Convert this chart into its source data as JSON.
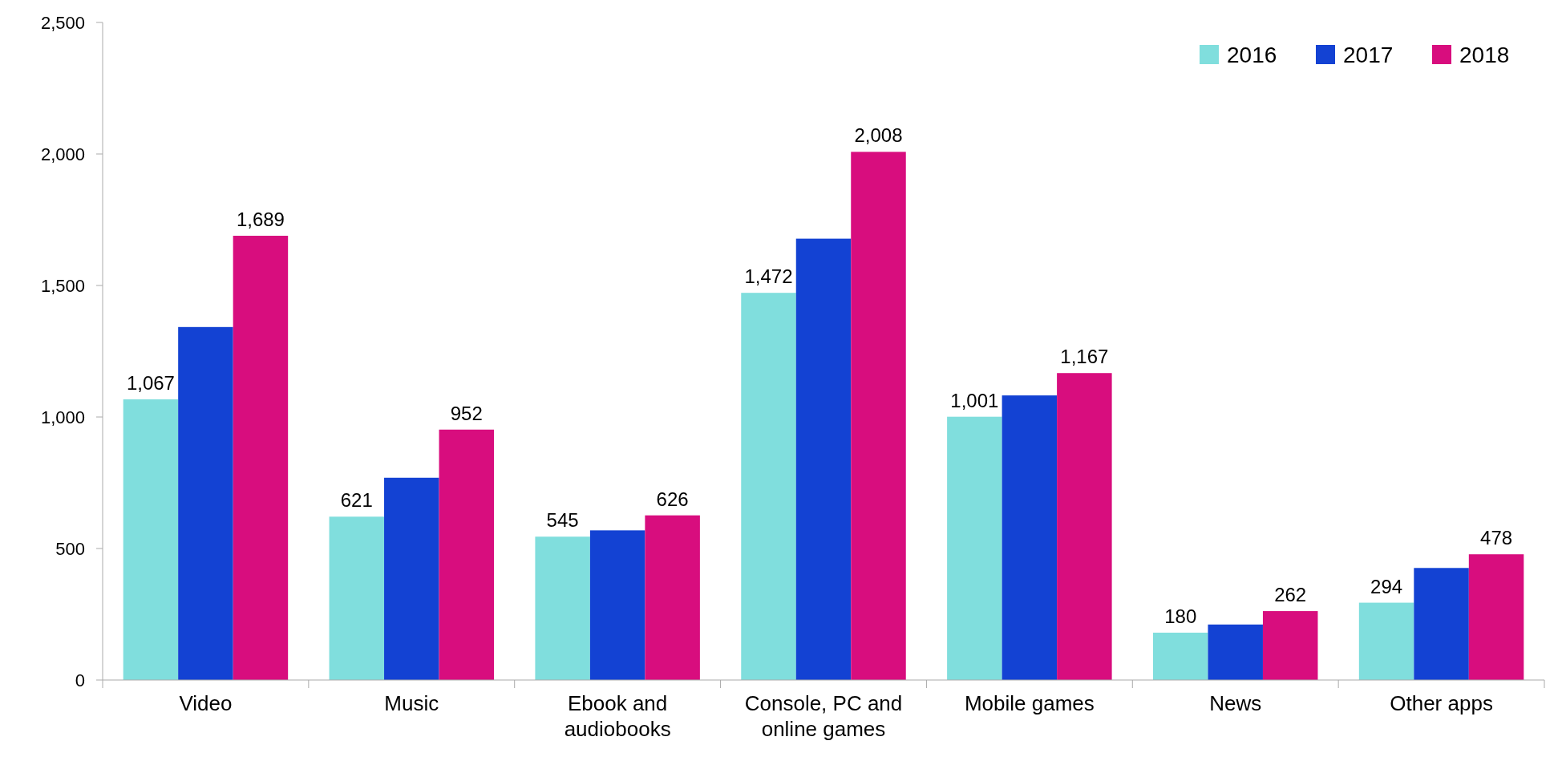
{
  "chart_data": {
    "type": "bar",
    "categories": [
      "Video",
      "Music",
      "Ebook and audiobooks",
      "Console, PC and online games",
      "Mobile games",
      "News",
      "Other apps"
    ],
    "series": [
      {
        "name": "2016",
        "color": "#80dedd",
        "values": [
          1067,
          621,
          545,
          1472,
          1001,
          180,
          294
        ],
        "value_labels": [
          "1,067",
          "621",
          "545",
          "1,472",
          "1,001",
          "180",
          "294"
        ]
      },
      {
        "name": "2017",
        "color": "#1342d3",
        "values": [
          1342,
          769,
          569,
          1678,
          1082,
          211,
          426
        ],
        "value_labels": [
          null,
          null,
          null,
          null,
          null,
          null,
          null
        ]
      },
      {
        "name": "2018",
        "color": "#d80d7e",
        "values": [
          1689,
          952,
          626,
          2008,
          1167,
          262,
          478
        ],
        "value_labels": [
          "1,689",
          "952",
          "626",
          "2,008",
          "1,167",
          "262",
          "478"
        ]
      }
    ],
    "ylim": [
      0,
      2500
    ],
    "yticks": [
      {
        "value": 0,
        "label": "0"
      },
      {
        "value": 500,
        "label": "500"
      },
      {
        "value": 1000,
        "label": "1,000"
      },
      {
        "value": 1500,
        "label": "1,500"
      },
      {
        "value": 2000,
        "label": "2,000"
      },
      {
        "value": 2500,
        "label": "2,500"
      }
    ],
    "legend": "top right",
    "grid": false
  }
}
